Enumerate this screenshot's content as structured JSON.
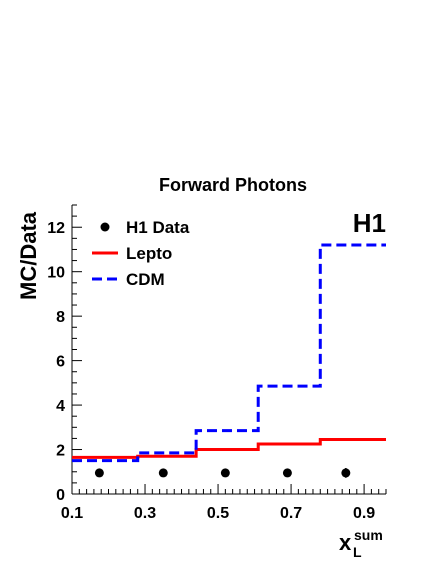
{
  "chart_data": {
    "type": "line",
    "title": "Forward Photons",
    "xlabel": "x",
    "xlabel_sub": "L",
    "xlabel_sup": "sum",
    "ylabel": "MC/Data",
    "experiment_label": "H1",
    "xlim": [
      0.1,
      0.96
    ],
    "ylim": [
      0,
      13
    ],
    "x_ticks": [
      0.1,
      0.3,
      0.5,
      0.7,
      0.9
    ],
    "x_tick_labels": [
      "0.1",
      "0.3",
      "0.5",
      "0.7",
      "0.9"
    ],
    "y_ticks": [
      0,
      2,
      4,
      6,
      8,
      10,
      12
    ],
    "y_tick_labels": [
      "0",
      "2",
      "4",
      "6",
      "8",
      "10",
      "12"
    ],
    "legend": {
      "position": "top-left",
      "entries": [
        {
          "label": "H1 Data",
          "style": "marker"
        },
        {
          "label": "Lepto",
          "style": "solid"
        },
        {
          "label": "CDM",
          "style": "dashed"
        }
      ]
    },
    "bin_edges": [
      0.1,
      0.28,
      0.44,
      0.61,
      0.78,
      0.96
    ],
    "series": [
      {
        "name": "H1 Data",
        "kind": "points",
        "color": "#000000",
        "x": [
          0.175,
          0.35,
          0.52,
          0.69,
          0.85
        ],
        "values": [
          0.95,
          0.95,
          0.95,
          0.95,
          0.95
        ],
        "errors": [
          0.06,
          0.06,
          0.08,
          0.18,
          0.22
        ]
      },
      {
        "name": "Lepto",
        "kind": "step",
        "color": "#ff0000",
        "values": [
          1.65,
          1.7,
          2.0,
          2.25,
          2.45
        ]
      },
      {
        "name": "CDM",
        "kind": "step",
        "color": "#0000ff",
        "values": [
          1.5,
          1.85,
          2.85,
          4.85,
          11.2
        ]
      }
    ]
  }
}
